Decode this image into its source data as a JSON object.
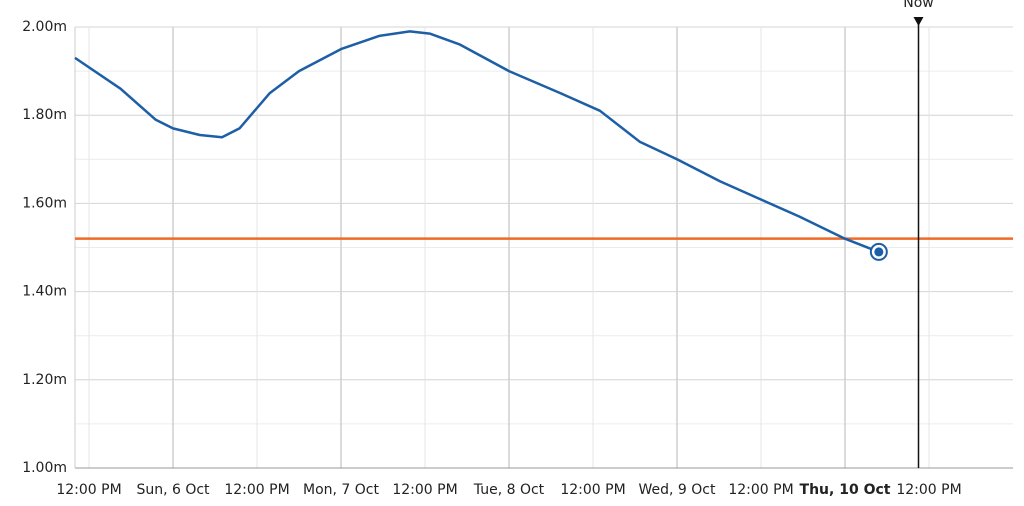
{
  "chart_data": {
    "type": "line",
    "x": [
      "5 Oct 10:00",
      "5 Oct 16:30",
      "5 Oct 21:30",
      "6 Oct 00:00",
      "6 Oct 03:50",
      "6 Oct 07:00",
      "6 Oct 09:30",
      "6 Oct 13:50",
      "6 Oct 18:00",
      "7 Oct 00:00",
      "7 Oct 05:30",
      "7 Oct 09:50",
      "7 Oct 12:40",
      "7 Oct 17:00",
      "8 Oct 00:00",
      "8 Oct 07:20",
      "8 Oct 13:00",
      "8 Oct 18:40",
      "9 Oct 00:00",
      "9 Oct 06:10",
      "9 Oct 11:50",
      "9 Oct 17:30",
      "10 Oct 00:00",
      "10 Oct 04:50"
    ],
    "series": [
      {
        "color": "#1d5fa6",
        "values": [
          1.93,
          1.86,
          1.79,
          1.77,
          1.755,
          1.75,
          1.77,
          1.85,
          1.9,
          1.95,
          1.98,
          1.99,
          1.985,
          1.96,
          1.9,
          1.85,
          1.81,
          1.74,
          1.7,
          1.65,
          1.61,
          1.57,
          1.52,
          1.49
        ]
      }
    ],
    "threshold": {
      "value": 1.52,
      "color": "#f06a27"
    },
    "now": {
      "x": "10 Oct 10:30",
      "label": "Now"
    },
    "xlim": [
      "5 Oct 10:00",
      "11 Oct 00:00"
    ],
    "xticks": [
      {
        "value": "5 Oct 12:00",
        "label": "12:00 PM"
      },
      {
        "value": "6 Oct 00:00",
        "label": "Sun, 6 Oct"
      },
      {
        "value": "6 Oct 12:00",
        "label": "12:00 PM"
      },
      {
        "value": "7 Oct 00:00",
        "label": "Mon, 7 Oct"
      },
      {
        "value": "7 Oct 12:00",
        "label": "12:00 PM"
      },
      {
        "value": "8 Oct 00:00",
        "label": "Tue, 8 Oct"
      },
      {
        "value": "8 Oct 12:00",
        "label": "12:00 PM"
      },
      {
        "value": "9 Oct 00:00",
        "label": "Wed, 9 Oct"
      },
      {
        "value": "9 Oct 12:00",
        "label": "12:00 PM"
      },
      {
        "value": "10 Oct 00:00",
        "label": "Thu, 10 Oct"
      },
      {
        "value": "10 Oct 12:00",
        "label": "12:00 PM"
      }
    ],
    "bold_xtick": 9,
    "ylim": [
      1.0,
      2.0
    ],
    "yticks": [
      {
        "value": 1.0,
        "label": "1.00m"
      },
      {
        "value": 1.2,
        "label": "1.20m"
      },
      {
        "value": 1.4,
        "label": "1.40m"
      },
      {
        "value": 1.6,
        "label": "1.60m"
      },
      {
        "value": 1.8,
        "label": "1.80m"
      },
      {
        "value": 2.0,
        "label": "2.00m"
      }
    ],
    "grid": true
  }
}
